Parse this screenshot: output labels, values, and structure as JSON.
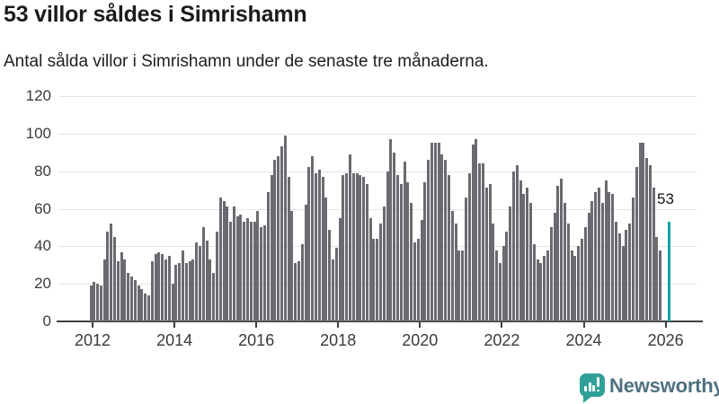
{
  "header": {
    "title": "53 villor såldes i Simrishamn",
    "subtitle": "Antal sålda villor i Simrishamn under de senaste tre månaderna."
  },
  "chart_data": {
    "type": "bar",
    "title": "53 villor såldes i Simrishamn",
    "subtitle": "Antal sålda villor i Simrishamn under de senaste tre månaderna.",
    "grid": "horizontal",
    "legend": "none",
    "ylim": [
      0,
      120
    ],
    "yticks": [
      0,
      20,
      40,
      60,
      80,
      100,
      120
    ],
    "xtick_years": [
      2012,
      2014,
      2016,
      2018,
      2020,
      2022,
      2024,
      2026
    ],
    "frequency": "monthly",
    "start": "2012-01",
    "series": [
      {
        "name": "Antal sålda villor",
        "color": "#6a6a70",
        "values": [
          19,
          21,
          20,
          19,
          33,
          48,
          52,
          45,
          32,
          37,
          33,
          26,
          24,
          22,
          19,
          17,
          15,
          14,
          32,
          36,
          37,
          36,
          33,
          35,
          20,
          30,
          31,
          38,
          31,
          32,
          33,
          42,
          40,
          50,
          43,
          33,
          26,
          48,
          66,
          64,
          61,
          53,
          61,
          56,
          57,
          53,
          55,
          53,
          53,
          59,
          50,
          51,
          69,
          78,
          86,
          88,
          93,
          99,
          77,
          59,
          31,
          32,
          41,
          62,
          82,
          88,
          79,
          81,
          77,
          66,
          49,
          33,
          39,
          55,
          78,
          79,
          89,
          79,
          79,
          78,
          77,
          73,
          55,
          44,
          44,
          52,
          61,
          80,
          97,
          90,
          78,
          73,
          85,
          74,
          63,
          42,
          44,
          54,
          74,
          86,
          95,
          95,
          95,
          89,
          86,
          78,
          59,
          52,
          38,
          38,
          66,
          79,
          94,
          97,
          84,
          84,
          71,
          73,
          52,
          38,
          31,
          40,
          48,
          61,
          80,
          83,
          75,
          68,
          71,
          63,
          41,
          33,
          31,
          35,
          38,
          50,
          58,
          72,
          76,
          63,
          52,
          38,
          35,
          40,
          44,
          50,
          58,
          64,
          69,
          71,
          63,
          75,
          69,
          68,
          53,
          47,
          40,
          49,
          52,
          66,
          82,
          95,
          95,
          87,
          83,
          71,
          45,
          38
        ]
      }
    ],
    "highlight_bar": {
      "value": 53,
      "label": "53",
      "color": "#17a0a0",
      "x_position_year": 2026
    }
  },
  "colors": {
    "bar": "#6a6a70",
    "highlight": "#17a0a0",
    "grid": "#e3e3e3",
    "axis": "#3f3f3f",
    "tick_text": "#3a3a3a"
  },
  "logo": {
    "brand": "Newsworthy",
    "icon": "bar-chart-speech-bubble-icon",
    "icon_color": "#2fa198",
    "text_color": "#4e7080"
  }
}
